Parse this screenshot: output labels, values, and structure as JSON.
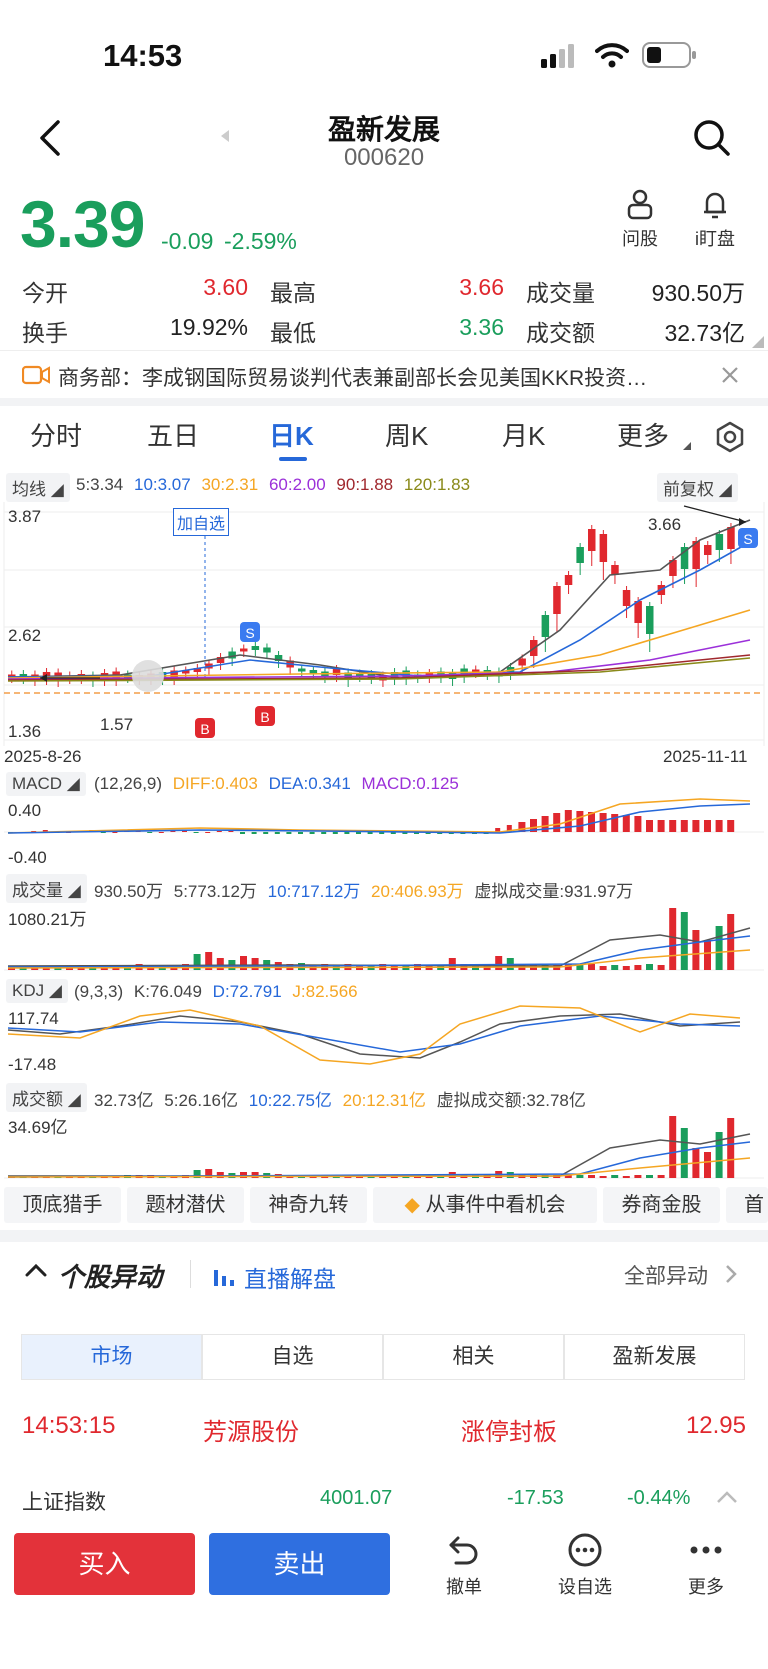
{
  "status": {
    "time": "14:53"
  },
  "header": {
    "name": "盈新发展",
    "code": "000620"
  },
  "quote": {
    "price": "3.39",
    "change": "-0.09",
    "change_pct": "-2.59%",
    "open_label": "今开",
    "open": "3.60",
    "high_label": "最高",
    "high": "3.66",
    "vol_label": "成交量",
    "vol": "930.50万",
    "turn_label": "换手",
    "turn": "19.92%",
    "low_label": "最低",
    "low": "3.36",
    "amt_label": "成交额",
    "amt": "32.73亿"
  },
  "actions": {
    "ask": "问股",
    "watch": "i盯盘"
  },
  "news": {
    "text": "商务部：李成钢国际贸易谈判代表兼副部长会见美国KKR投资…"
  },
  "tabs": [
    "分时",
    "五日",
    "日K",
    "周K",
    "月K",
    "更多"
  ],
  "ma": {
    "label": "均线",
    "ma5": "5:3.34",
    "ma10": "10:3.07",
    "ma30": "30:2.31",
    "ma60": "60:2.00",
    "ma90": "90:1.88",
    "ma120": "120:1.83",
    "adjust": "前复权"
  },
  "kline": {
    "y_top": "3.87",
    "y_mid": "2.62",
    "y_low": "1.36",
    "add_watch": "加自选",
    "max_tag": "3.66",
    "min_tag": "1.57",
    "date_start": "2025-8-26",
    "date_end": "2025-11-11",
    "b": "B",
    "s": "S"
  },
  "macd": {
    "label": "MACD",
    "params": "(12,26,9)",
    "diff": "DIFF:0.403",
    "dea": "DEA:0.341",
    "macd": "MACD:0.125",
    "y_top": "0.40",
    "y_bot": "-0.40"
  },
  "volume": {
    "label": "成交量",
    "v": "930.50万",
    "v5": "5:773.12万",
    "v10": "10:717.12万",
    "v20": "20:406.93万",
    "virtual": "虚拟成交量:931.97万",
    "y_top": "1080.21万"
  },
  "kdj": {
    "label": "KDJ",
    "params": "(9,3,3)",
    "k": "K:76.049",
    "d": "D:72.791",
    "j": "J:82.566",
    "y_top": "117.74",
    "y_bot": "-17.48"
  },
  "amount": {
    "label": "成交额",
    "v": "32.73亿",
    "v5": "5:26.16亿",
    "v10": "10:22.75亿",
    "v20": "20:12.31亿",
    "virtual": "虚拟成交额:32.78亿",
    "y_top": "34.69亿"
  },
  "tools": [
    "顶底猎手",
    "题材潜伏",
    "神奇九转",
    "从事件中看机会",
    "券商金股",
    "首"
  ],
  "moves": {
    "title": "个股异动",
    "live": "直播解盘",
    "all": "全部异动"
  },
  "segments": [
    "市场",
    "自选",
    "相关",
    "盈新发展"
  ],
  "alert": {
    "time": "14:53:15",
    "stock": "芳源股份",
    "event": "涨停封板",
    "price": "12.95"
  },
  "index": {
    "name": "上证指数",
    "value": "4001.07",
    "change": "-17.53",
    "pct": "-0.44%"
  },
  "bottom": {
    "buy": "买入",
    "sell": "卖出",
    "cancel": "撤单",
    "set_watch": "设自选",
    "more": "更多"
  },
  "colors": {
    "up": "#e0282e",
    "down": "#1a9e5c",
    "accent": "#2668d9"
  }
}
